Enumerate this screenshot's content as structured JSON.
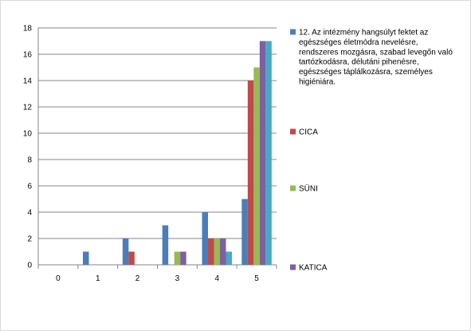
{
  "chart_data": {
    "type": "bar",
    "categories": [
      "0",
      "1",
      "2",
      "3",
      "4",
      "5"
    ],
    "ylim": [
      0,
      18
    ],
    "yticks": [
      0,
      2,
      4,
      6,
      8,
      10,
      12,
      14,
      16,
      18
    ],
    "grid": true,
    "legend_position": "right",
    "series": [
      {
        "name": "12. Az intézmény hangsúlyt fektet az egészséges életmódra nevelésre, rendszeres mozgásra, szabad levegőn való tartózkodásra, délutáni pihenésre, egészséges táplálkozásra, személyes higiéniára.",
        "name_lines": [
          "12. Az intézmény hangsúlyt fektet az",
          "egészséges életmódra nevelésre,",
          "rendszeres mozgásra, szabad levegőn való",
          "tartózkodásra, délutáni pihenésre,",
          "egészséges táplálkozásra, személyes",
          "higiéniára."
        ],
        "color": "#4a7ebb",
        "values": [
          0,
          1,
          2,
          3,
          4,
          5
        ]
      },
      {
        "name": "CICA",
        "name_lines": [
          "CICA"
        ],
        "color": "#be4b48",
        "values": [
          0,
          0,
          1,
          0,
          2,
          14
        ]
      },
      {
        "name": "SÜNI",
        "name_lines": [
          "SÜNI"
        ],
        "color": "#98b954",
        "values": [
          0,
          0,
          0,
          1,
          2,
          15
        ]
      },
      {
        "name": "KATICA",
        "name_lines": [
          "KATICA"
        ],
        "color": "#7d60a0",
        "values": [
          0,
          0,
          0,
          1,
          2,
          17
        ]
      },
      {
        "name": "",
        "name_lines": [],
        "color": "#46aac5",
        "values": [
          0,
          0,
          0,
          0,
          1,
          17
        ]
      }
    ]
  }
}
